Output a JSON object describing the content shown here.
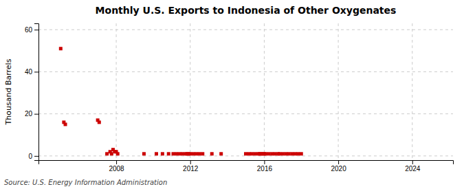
{
  "chart_data": {
    "type": "scatter",
    "title": "Monthly U.S. Exports to Indonesia of Other Oxygenates",
    "ylabel": "Thousand Barrels",
    "annotations": [
      "Source: U.S. Energy Information Administration"
    ],
    "x": [
      2005.0,
      2005.17,
      2005.25,
      2007.0,
      2007.08,
      2007.5,
      2007.67,
      2007.75,
      2007.83,
      2007.92,
      2008.0,
      2008.08,
      2009.5,
      2010.17,
      2010.5,
      2010.83,
      2011.08,
      2011.25,
      2011.42,
      2011.58,
      2011.75,
      2011.83,
      2011.92,
      2012.0,
      2012.17,
      2012.33,
      2012.5,
      2012.67,
      2013.17,
      2013.67,
      2015.0,
      2015.17,
      2015.33,
      2015.5,
      2015.67,
      2015.75,
      2015.83,
      2015.92,
      2016.0,
      2016.08,
      2016.25,
      2016.42,
      2016.58,
      2016.75,
      2016.83,
      2017.0,
      2017.17,
      2017.33,
      2017.5,
      2017.67,
      2017.83,
      2018.0
    ],
    "values": [
      51,
      16,
      15,
      17,
      16,
      1,
      2,
      1,
      3,
      2,
      2,
      1,
      1,
      1,
      1,
      1,
      1,
      1,
      1,
      1,
      1,
      1,
      1,
      1,
      1,
      1,
      1,
      1,
      1,
      1,
      1,
      1,
      1,
      1,
      1,
      1,
      1,
      1,
      1,
      1,
      1,
      1,
      1,
      1,
      1,
      1,
      1,
      1,
      1,
      1,
      1,
      1
    ],
    "color": "#cc0000",
    "marker": "square",
    "xlim": [
      2003.8,
      2026.2
    ],
    "ylim": [
      -2,
      63
    ],
    "xticks": [
      2008,
      2012,
      2016,
      2020,
      2024
    ],
    "yticks": [
      0,
      20,
      40,
      60
    ],
    "grid": true
  }
}
